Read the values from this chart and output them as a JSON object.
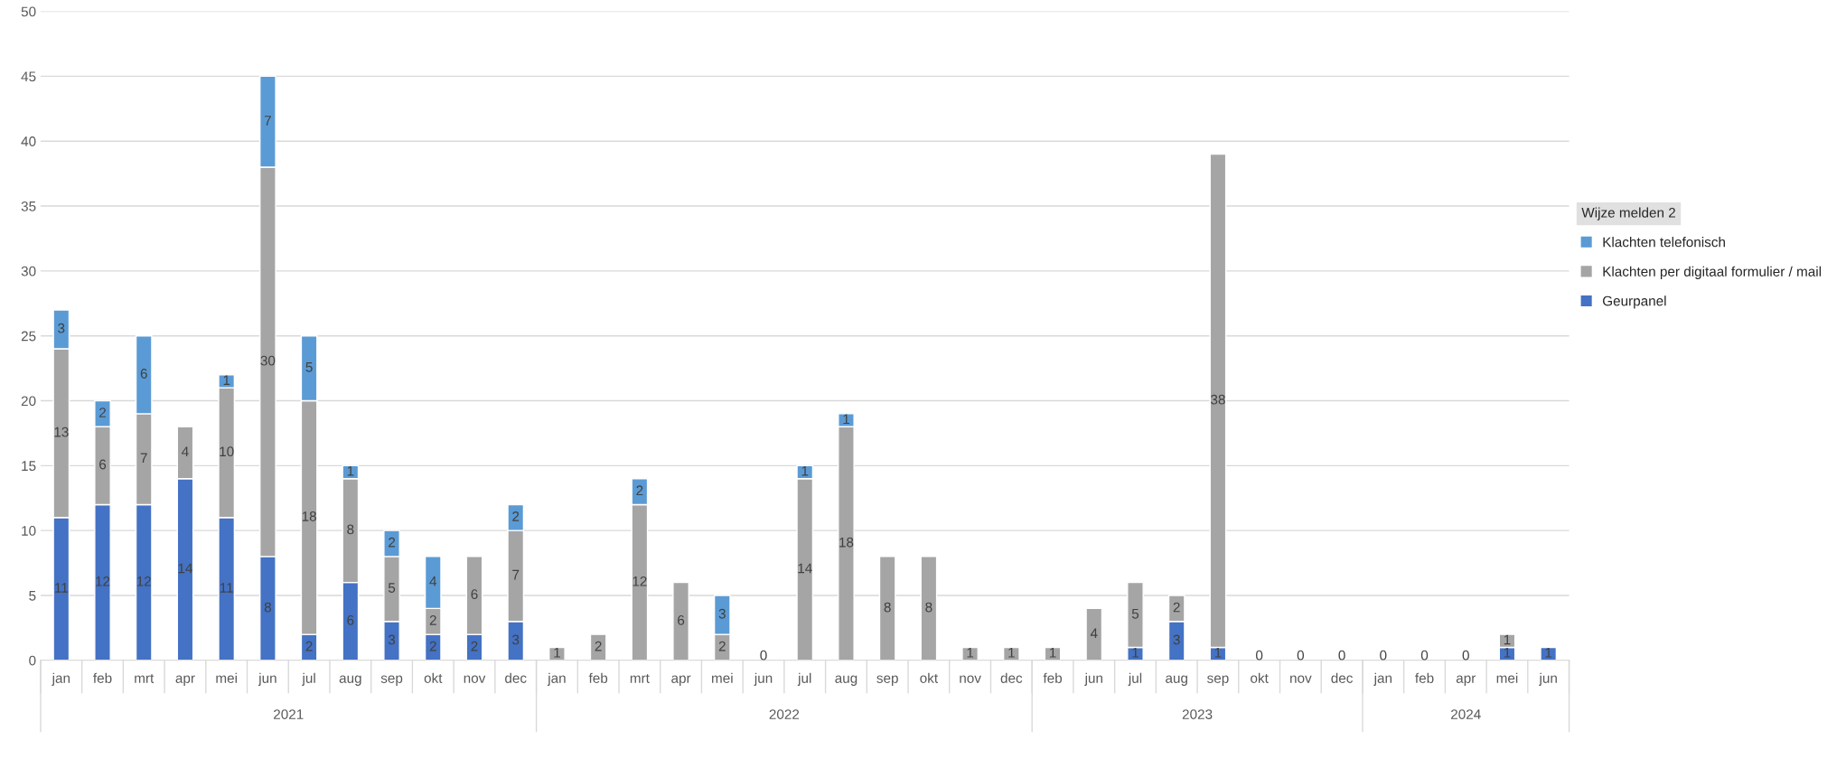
{
  "chart_data": {
    "type": "bar",
    "stacked": true,
    "legend_title": "Wijze melden 2",
    "legend": "right",
    "grid": "y",
    "data_labels": true,
    "categories": [
      "jan",
      "feb",
      "mrt",
      "apr",
      "mei",
      "jun",
      "jul",
      "aug",
      "sep",
      "okt",
      "nov",
      "dec",
      "jan",
      "feb",
      "mrt",
      "apr",
      "mei",
      "jun",
      "jul",
      "aug",
      "sep",
      "okt",
      "nov",
      "dec",
      "feb",
      "jun",
      "jul",
      "aug",
      "sep",
      "okt",
      "nov",
      "dec",
      "jan",
      "feb",
      "apr",
      "mei",
      "jun"
    ],
    "ylim": [
      0,
      50
    ],
    "yticks": [
      0,
      5,
      10,
      15,
      20,
      25,
      30,
      35,
      40,
      45,
      50
    ],
    "annotations": [
      "2021",
      "2022",
      "2023",
      "2024"
    ],
    "series": [
      {
        "name": "Geurpanel",
        "color": "#4472c4",
        "values": [
          11,
          12,
          12,
          14,
          11,
          8,
          2,
          6,
          3,
          2,
          2,
          3,
          null,
          null,
          null,
          null,
          null,
          null,
          null,
          null,
          null,
          null,
          null,
          null,
          null,
          null,
          1,
          3,
          1,
          null,
          null,
          null,
          null,
          null,
          null,
          1,
          1
        ]
      },
      {
        "name": "Klachten per digitaal formulier / mail",
        "color": "#a5a5a5",
        "values": [
          13,
          6,
          7,
          4,
          10,
          30,
          18,
          8,
          5,
          2,
          6,
          7,
          1,
          2,
          12,
          6,
          2,
          0,
          14,
          18,
          8,
          8,
          1,
          1,
          1,
          4,
          5,
          2,
          38,
          0,
          0,
          0,
          0,
          0,
          0,
          1,
          null
        ]
      },
      {
        "name": "Klachten telefonisch",
        "color": "#5b9bd5",
        "values": [
          3,
          2,
          6,
          null,
          1,
          7,
          5,
          1,
          2,
          4,
          null,
          2,
          null,
          null,
          2,
          null,
          3,
          null,
          1,
          1,
          null,
          null,
          null,
          null,
          null,
          null,
          null,
          null,
          null,
          null,
          null,
          null,
          null,
          null,
          null,
          null,
          null
        ]
      }
    ]
  }
}
